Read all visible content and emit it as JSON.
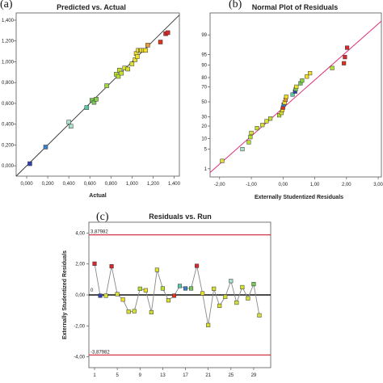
{
  "panel_labels": [
    "(a)",
    "(b)",
    "(c)"
  ],
  "chart_data": [
    {
      "type": "scatter",
      "title": "Predicted vs. Actual",
      "xlabel": "Actual",
      "ylabel": "",
      "xlim": [
        -0.1,
        1.45
      ],
      "ylim": [
        -0.1,
        1.47
      ],
      "x_ticks": [
        "0,000",
        "0,200",
        "0,400",
        "0,600",
        "0,800",
        "1,000",
        "1,200",
        "1,400"
      ],
      "x_tick_values": [
        0,
        0.2,
        0.4,
        0.6,
        0.8,
        1.0,
        1.2,
        1.4
      ],
      "y_ticks": [
        "0,000",
        "0,200",
        "0,400",
        "0,600",
        "0,800",
        "1,000",
        "1,200",
        "1,400"
      ],
      "y_tick_values": [
        0,
        0.2,
        0.4,
        0.6,
        0.8,
        1.0,
        1.2,
        1.4
      ],
      "reference_line": [
        [
          -0.1,
          -0.1
        ],
        [
          1.45,
          1.45
        ]
      ],
      "grid": false,
      "points": [
        {
          "x": 0.03,
          "y": 0.02,
          "color": "#2e3fae"
        },
        {
          "x": 0.18,
          "y": 0.18,
          "color": "#3a7fc8"
        },
        {
          "x": 0.4,
          "y": 0.42,
          "color": "#a8e0c8"
        },
        {
          "x": 0.42,
          "y": 0.38,
          "color": "#a8e0c8"
        },
        {
          "x": 0.57,
          "y": 0.56,
          "color": "#58c6a8"
        },
        {
          "x": 0.62,
          "y": 0.63,
          "color": "#78c858"
        },
        {
          "x": 0.64,
          "y": 0.61,
          "color": "#78c858"
        },
        {
          "x": 0.66,
          "y": 0.64,
          "color": "#8cd048"
        },
        {
          "x": 0.76,
          "y": 0.77,
          "color": "#9ed840"
        },
        {
          "x": 0.85,
          "y": 0.88,
          "color": "#b8e030"
        },
        {
          "x": 0.87,
          "y": 0.86,
          "color": "#b8e030"
        },
        {
          "x": 0.88,
          "y": 0.92,
          "color": "#c8e030"
        },
        {
          "x": 0.9,
          "y": 0.89,
          "color": "#c8e030"
        },
        {
          "x": 0.93,
          "y": 0.94,
          "color": "#d8e030"
        },
        {
          "x": 0.96,
          "y": 0.93,
          "color": "#d8e030"
        },
        {
          "x": 1.0,
          "y": 0.98,
          "color": "#e0e030"
        },
        {
          "x": 1.03,
          "y": 1.02,
          "color": "#e8e030"
        },
        {
          "x": 1.04,
          "y": 1.08,
          "color": "#f0e028"
        },
        {
          "x": 1.05,
          "y": 1.05,
          "color": "#f0e028"
        },
        {
          "x": 1.06,
          "y": 1.11,
          "color": "#f0e028"
        },
        {
          "x": 1.08,
          "y": 1.11,
          "color": "#f0e028"
        },
        {
          "x": 1.09,
          "y": 1.11,
          "color": "#f0e028"
        },
        {
          "x": 1.11,
          "y": 1.11,
          "color": "#f0e028"
        },
        {
          "x": 1.13,
          "y": 1.11,
          "color": "#f0e028"
        },
        {
          "x": 1.15,
          "y": 1.16,
          "color": "#f09830"
        },
        {
          "x": 1.27,
          "y": 1.19,
          "color": "#e03020"
        },
        {
          "x": 1.32,
          "y": 1.27,
          "color": "#d82828"
        },
        {
          "x": 1.34,
          "y": 1.28,
          "color": "#d82828"
        }
      ]
    },
    {
      "type": "scatter",
      "title": "Normal Plot of Residuals",
      "xlabel": "Externally Studentized Residuals",
      "ylabel": "",
      "xlim": [
        -2.3,
        3.1
      ],
      "y_scale": "normal-probability",
      "ylim_percent": [
        0.45,
        99.9
      ],
      "x_ticks": [
        "-2,00",
        "-1,00",
        "0,00",
        "1,00",
        "2,00",
        "3,00"
      ],
      "x_tick_values": [
        -2,
        -1,
        0,
        1,
        2,
        3
      ],
      "y_ticks": [
        "1",
        "5",
        "10",
        "20",
        "30",
        "50",
        "70",
        "80",
        "90",
        "95",
        "99"
      ],
      "y_tick_values": [
        1,
        5,
        10,
        20,
        30,
        50,
        70,
        80,
        90,
        95,
        99
      ],
      "reference_line_percent": [
        [
          -2.3,
          0.7
        ],
        [
          3.1,
          99.75
        ]
      ],
      "grid": false,
      "points": [
        {
          "x": -1.92,
          "p": 2,
          "color": "#d8e030"
        },
        {
          "x": -1.28,
          "p": 5,
          "color": "#a8e0c8"
        },
        {
          "x": -1.08,
          "p": 8,
          "color": "#b8e030"
        },
        {
          "x": -1.03,
          "p": 11,
          "color": "#b8e030"
        },
        {
          "x": -1.0,
          "p": 14,
          "color": "#d8e030"
        },
        {
          "x": -0.82,
          "p": 18,
          "color": "#c8e030"
        },
        {
          "x": -0.65,
          "p": 21,
          "color": "#d8e030"
        },
        {
          "x": -0.52,
          "p": 25,
          "color": "#d8e030"
        },
        {
          "x": -0.4,
          "p": 28,
          "color": "#c8e030"
        },
        {
          "x": -0.12,
          "p": 32,
          "color": "#b8e030"
        },
        {
          "x": -0.05,
          "p": 35,
          "color": "#d8e030"
        },
        {
          "x": -0.02,
          "p": 39,
          "color": "#f0e028"
        },
        {
          "x": 0.0,
          "p": 42,
          "color": "#e03020"
        },
        {
          "x": 0.02,
          "p": 46,
          "color": "#3a7fc8"
        },
        {
          "x": 0.05,
          "p": 49,
          "color": "#f0e028"
        },
        {
          "x": 0.08,
          "p": 53,
          "color": "#f09830"
        },
        {
          "x": 0.1,
          "p": 57,
          "color": "#f0e028"
        },
        {
          "x": 0.3,
          "p": 60,
          "color": "#58c6a8"
        },
        {
          "x": 0.38,
          "p": 64,
          "color": "#2e3fae"
        },
        {
          "x": 0.4,
          "p": 67,
          "color": "#78c858"
        },
        {
          "x": 0.42,
          "p": 70,
          "color": "#f0e028"
        },
        {
          "x": 0.55,
          "p": 74,
          "color": "#78c858"
        },
        {
          "x": 0.6,
          "p": 77,
          "color": "#8cd048"
        },
        {
          "x": 0.75,
          "p": 81,
          "color": "#f0e028"
        },
        {
          "x": 0.85,
          "p": 84,
          "color": "#f0e028"
        },
        {
          "x": 1.55,
          "p": 88,
          "color": "#b8e030"
        },
        {
          "x": 1.92,
          "p": 91,
          "color": "#e03020"
        },
        {
          "x": 1.95,
          "p": 94,
          "color": "#d82828"
        },
        {
          "x": 2.02,
          "p": 97,
          "color": "#d82828"
        }
      ]
    },
    {
      "type": "line",
      "title": "Residuals vs. Run",
      "xlabel": "",
      "ylabel": "Externally Studentized Residuals",
      "xlim": [
        0,
        32
      ],
      "ylim": [
        -4.7,
        4.7
      ],
      "x_ticks": [
        "1",
        "5",
        "9",
        "13",
        "17",
        "21",
        "25",
        "29"
      ],
      "x_tick_values": [
        1,
        5,
        9,
        13,
        17,
        21,
        25,
        29
      ],
      "y_ticks": [
        "4,00",
        "2,00",
        "0,00",
        "-2,00",
        "-4,00"
      ],
      "y_tick_values": [
        4,
        2,
        0,
        -2,
        -4
      ],
      "limits": [
        {
          "value": 3.87982,
          "label": "3,87982",
          "color": "#cc2030"
        },
        {
          "value": -3.87982,
          "label": "-3,87982",
          "color": "#cc2030"
        }
      ],
      "zero_line": {
        "value": 0,
        "label": "0"
      },
      "grid": false,
      "x": [
        1,
        2,
        3,
        4,
        5,
        6,
        7,
        8,
        9,
        10,
        11,
        12,
        13,
        14,
        15,
        16,
        17,
        18,
        19,
        20,
        21,
        22,
        23,
        24,
        25,
        26,
        27,
        28,
        29,
        30
      ],
      "values": [
        2.02,
        -0.05,
        -0.05,
        1.85,
        0.05,
        -0.3,
        -1.08,
        -1.05,
        0.4,
        0.3,
        -1.12,
        1.62,
        0.42,
        -0.35,
        -0.05,
        0.58,
        0.42,
        0.42,
        1.88,
        0.1,
        -1.95,
        0.4,
        -0.7,
        -0.12,
        0.9,
        -0.5,
        0.5,
        -0.22,
        0.7,
        -1.32
      ],
      "colors": [
        "#d82828",
        "#2e3fae",
        "#d8e030",
        "#d82828",
        "#d8e030",
        "#f0e028",
        "#d8e030",
        "#d8e030",
        "#b8e030",
        "#f0e028",
        "#d8e030",
        "#d8e030",
        "#b8e030",
        "#d8e030",
        "#e03020",
        "#58c6a8",
        "#3a7fc8",
        "#78c858",
        "#d82828",
        "#f0e028",
        "#d8e030",
        "#d8e030",
        "#d8e030",
        "#d8e030",
        "#a8e0c8",
        "#d8e030",
        "#d8e030",
        "#d8e030",
        "#78c858",
        "#d8e030"
      ]
    }
  ]
}
